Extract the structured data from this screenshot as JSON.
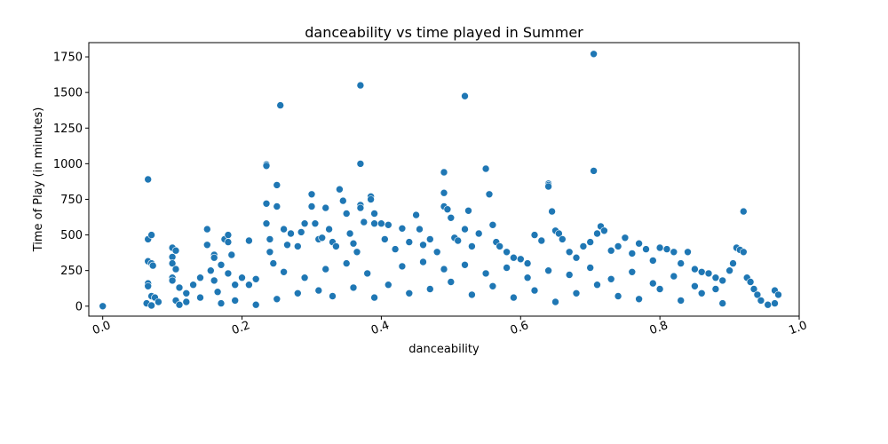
{
  "chart_data": {
    "type": "scatter",
    "title": "danceability vs time played in Summer",
    "xlabel": "danceability",
    "ylabel": "Time of Play (in minutes)",
    "xlim": [
      -0.02,
      1.0
    ],
    "ylim": [
      -70,
      1850
    ],
    "x_ticks": [
      0.0,
      0.2,
      0.4,
      0.6,
      0.8,
      1.0
    ],
    "x_tick_labels": [
      "0.0",
      "0.2",
      "0.4",
      "0.6",
      "0.8",
      "1.0"
    ],
    "y_ticks": [
      0,
      250,
      500,
      750,
      1000,
      1250,
      1500,
      1750
    ],
    "y_tick_labels": [
      "0",
      "250",
      "500",
      "750",
      "1000",
      "1250",
      "1500",
      "1750"
    ],
    "x_tick_rotation_deg": 20,
    "grid": false,
    "marker_color": "#1f77b4",
    "marker_edge_color": "#ffffff",
    "series": [
      {
        "points": [
          [
            0.0,
            0
          ],
          [
            0.065,
            890
          ],
          [
            0.065,
            470
          ],
          [
            0.07,
            500
          ],
          [
            0.065,
            315
          ],
          [
            0.07,
            300
          ],
          [
            0.072,
            285
          ],
          [
            0.065,
            160
          ],
          [
            0.065,
            140
          ],
          [
            0.07,
            70
          ],
          [
            0.075,
            60
          ],
          [
            0.063,
            20
          ],
          [
            0.07,
            5
          ],
          [
            0.08,
            30
          ],
          [
            0.1,
            410
          ],
          [
            0.1,
            345
          ],
          [
            0.1,
            300
          ],
          [
            0.105,
            390
          ],
          [
            0.105,
            260
          ],
          [
            0.1,
            200
          ],
          [
            0.1,
            180
          ],
          [
            0.11,
            130
          ],
          [
            0.12,
            90
          ],
          [
            0.105,
            40
          ],
          [
            0.11,
            10
          ],
          [
            0.13,
            150
          ],
          [
            0.14,
            200
          ],
          [
            0.15,
            540
          ],
          [
            0.15,
            430
          ],
          [
            0.16,
            360
          ],
          [
            0.16,
            340
          ],
          [
            0.155,
            250
          ],
          [
            0.16,
            180
          ],
          [
            0.165,
            100
          ],
          [
            0.17,
            290
          ],
          [
            0.175,
            470
          ],
          [
            0.18,
            500
          ],
          [
            0.18,
            450
          ],
          [
            0.185,
            360
          ],
          [
            0.18,
            230
          ],
          [
            0.19,
            150
          ],
          [
            0.2,
            200
          ],
          [
            0.21,
            460
          ],
          [
            0.21,
            150
          ],
          [
            0.22,
            190
          ],
          [
            0.235,
            995
          ],
          [
            0.235,
            985
          ],
          [
            0.235,
            720
          ],
          [
            0.235,
            580
          ],
          [
            0.24,
            470
          ],
          [
            0.24,
            380
          ],
          [
            0.245,
            300
          ],
          [
            0.25,
            850
          ],
          [
            0.25,
            700
          ],
          [
            0.255,
            1410
          ],
          [
            0.26,
            540
          ],
          [
            0.265,
            430
          ],
          [
            0.27,
            510
          ],
          [
            0.28,
            420
          ],
          [
            0.285,
            520
          ],
          [
            0.29,
            580
          ],
          [
            0.3,
            785
          ],
          [
            0.3,
            700
          ],
          [
            0.305,
            580
          ],
          [
            0.31,
            470
          ],
          [
            0.315,
            480
          ],
          [
            0.32,
            690
          ],
          [
            0.325,
            540
          ],
          [
            0.33,
            450
          ],
          [
            0.335,
            420
          ],
          [
            0.34,
            820
          ],
          [
            0.345,
            740
          ],
          [
            0.35,
            650
          ],
          [
            0.355,
            510
          ],
          [
            0.36,
            440
          ],
          [
            0.365,
            380
          ],
          [
            0.37,
            1550
          ],
          [
            0.37,
            1000
          ],
          [
            0.37,
            710
          ],
          [
            0.37,
            690
          ],
          [
            0.375,
            590
          ],
          [
            0.385,
            770
          ],
          [
            0.385,
            750
          ],
          [
            0.39,
            650
          ],
          [
            0.39,
            580
          ],
          [
            0.4,
            580
          ],
          [
            0.405,
            470
          ],
          [
            0.41,
            570
          ],
          [
            0.42,
            400
          ],
          [
            0.43,
            545
          ],
          [
            0.44,
            450
          ],
          [
            0.45,
            640
          ],
          [
            0.455,
            540
          ],
          [
            0.46,
            430
          ],
          [
            0.47,
            470
          ],
          [
            0.48,
            380
          ],
          [
            0.49,
            940
          ],
          [
            0.49,
            795
          ],
          [
            0.49,
            700
          ],
          [
            0.495,
            680
          ],
          [
            0.5,
            620
          ],
          [
            0.505,
            480
          ],
          [
            0.51,
            460
          ],
          [
            0.52,
            1475
          ],
          [
            0.52,
            540
          ],
          [
            0.525,
            670
          ],
          [
            0.53,
            420
          ],
          [
            0.54,
            510
          ],
          [
            0.55,
            965
          ],
          [
            0.555,
            785
          ],
          [
            0.56,
            570
          ],
          [
            0.565,
            450
          ],
          [
            0.57,
            420
          ],
          [
            0.58,
            380
          ],
          [
            0.59,
            340
          ],
          [
            0.6,
            330
          ],
          [
            0.61,
            300
          ],
          [
            0.62,
            500
          ],
          [
            0.63,
            460
          ],
          [
            0.64,
            860
          ],
          [
            0.64,
            850
          ],
          [
            0.64,
            840
          ],
          [
            0.645,
            665
          ],
          [
            0.65,
            530
          ],
          [
            0.655,
            510
          ],
          [
            0.66,
            470
          ],
          [
            0.67,
            380
          ],
          [
            0.68,
            340
          ],
          [
            0.69,
            420
          ],
          [
            0.7,
            450
          ],
          [
            0.705,
            1770
          ],
          [
            0.705,
            950
          ],
          [
            0.71,
            510
          ],
          [
            0.715,
            560
          ],
          [
            0.72,
            530
          ],
          [
            0.73,
            390
          ],
          [
            0.74,
            420
          ],
          [
            0.75,
            480
          ],
          [
            0.76,
            370
          ],
          [
            0.77,
            440
          ],
          [
            0.78,
            400
          ],
          [
            0.79,
            320
          ],
          [
            0.8,
            410
          ],
          [
            0.81,
            400
          ],
          [
            0.82,
            380
          ],
          [
            0.83,
            300
          ],
          [
            0.84,
            380
          ],
          [
            0.85,
            260
          ],
          [
            0.86,
            240
          ],
          [
            0.87,
            230
          ],
          [
            0.88,
            200
          ],
          [
            0.89,
            180
          ],
          [
            0.9,
            250
          ],
          [
            0.905,
            300
          ],
          [
            0.91,
            410
          ],
          [
            0.915,
            395
          ],
          [
            0.92,
            380
          ],
          [
            0.92,
            665
          ],
          [
            0.925,
            200
          ],
          [
            0.93,
            170
          ],
          [
            0.935,
            120
          ],
          [
            0.94,
            80
          ],
          [
            0.945,
            40
          ],
          [
            0.955,
            10
          ],
          [
            0.965,
            110
          ],
          [
            0.97,
            80
          ],
          [
            0.965,
            20
          ],
          [
            0.12,
            30
          ],
          [
            0.14,
            60
          ],
          [
            0.17,
            20
          ],
          [
            0.19,
            40
          ],
          [
            0.22,
            10
          ],
          [
            0.25,
            50
          ],
          [
            0.28,
            90
          ],
          [
            0.31,
            110
          ],
          [
            0.33,
            70
          ],
          [
            0.36,
            130
          ],
          [
            0.39,
            60
          ],
          [
            0.41,
            150
          ],
          [
            0.44,
            90
          ],
          [
            0.47,
            120
          ],
          [
            0.5,
            170
          ],
          [
            0.53,
            80
          ],
          [
            0.56,
            140
          ],
          [
            0.59,
            60
          ],
          [
            0.62,
            110
          ],
          [
            0.65,
            30
          ],
          [
            0.68,
            90
          ],
          [
            0.71,
            150
          ],
          [
            0.74,
            70
          ],
          [
            0.77,
            50
          ],
          [
            0.8,
            120
          ],
          [
            0.83,
            40
          ],
          [
            0.86,
            90
          ],
          [
            0.89,
            20
          ],
          [
            0.26,
            240
          ],
          [
            0.29,
            200
          ],
          [
            0.32,
            260
          ],
          [
            0.35,
            300
          ],
          [
            0.38,
            230
          ],
          [
            0.43,
            280
          ],
          [
            0.46,
            310
          ],
          [
            0.49,
            260
          ],
          [
            0.52,
            290
          ],
          [
            0.55,
            230
          ],
          [
            0.58,
            270
          ],
          [
            0.61,
            200
          ],
          [
            0.64,
            250
          ],
          [
            0.67,
            220
          ],
          [
            0.7,
            270
          ],
          [
            0.73,
            190
          ],
          [
            0.76,
            240
          ],
          [
            0.79,
            160
          ],
          [
            0.82,
            210
          ],
          [
            0.85,
            140
          ],
          [
            0.88,
            120
          ]
        ]
      }
    ]
  }
}
